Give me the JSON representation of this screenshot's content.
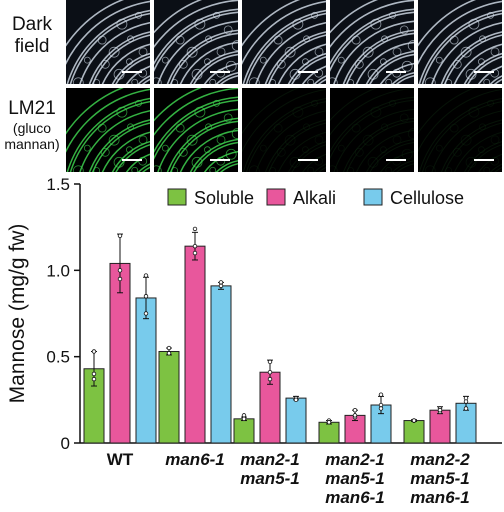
{
  "panels": {
    "row_labels": [
      {
        "lines": [
          "Dark",
          "field"
        ]
      },
      {
        "lines": [
          "LM21",
          "(gluco",
          "mannan)"
        ]
      }
    ]
  },
  "chart_data": {
    "type": "bar",
    "ylabel": "Mannose (mg/g fw)",
    "ylim": [
      0,
      1.5
    ],
    "yticks": [
      "0",
      "0.5",
      "1.0",
      "1.5"
    ],
    "categories": [
      {
        "lines": [
          "WT"
        ]
      },
      {
        "lines": [
          "man6-1"
        ]
      },
      {
        "lines": [
          "man2-1",
          "man5-1"
        ]
      },
      {
        "lines": [
          "man2-1",
          "man5-1",
          "man6-1"
        ]
      },
      {
        "lines": [
          "man2-2",
          "man5-1",
          "man6-1"
        ]
      }
    ],
    "legend_position": "top-right",
    "grid": false,
    "series": [
      {
        "name": "Soluble",
        "color": "#7dc242",
        "values": [
          0.43,
          0.53,
          0.14,
          0.12,
          0.13
        ],
        "errors": [
          0.1,
          0.02,
          0.01,
          0.01,
          0.005
        ],
        "points": [
          [
            0.53,
            0.4,
            0.37
          ],
          [
            0.55,
            0.52,
            0.52
          ],
          [
            0.16,
            0.14,
            0.14
          ],
          [
            0.13,
            0.12,
            0.12
          ],
          [
            0.13,
            0.13,
            0.13
          ]
        ]
      },
      {
        "name": "Alkali",
        "color": "#e8579c",
        "values": [
          1.04,
          1.14,
          0.41,
          0.16,
          0.19
        ],
        "errors": [
          0.17,
          0.08,
          0.07,
          0.03,
          0.02
        ],
        "points": [
          [
            1.2,
            1.0,
            0.95
          ],
          [
            1.24,
            1.14,
            1.1
          ],
          [
            0.47,
            0.41,
            0.37
          ],
          [
            0.19,
            0.15,
            0.16
          ],
          [
            0.2,
            0.18,
            0.19
          ]
        ]
      },
      {
        "name": "Cellulose",
        "color": "#78cbec",
        "values": [
          0.84,
          0.91,
          0.26,
          0.22,
          0.23
        ],
        "errors": [
          0.12,
          0.02,
          0.01,
          0.05,
          0.04
        ],
        "points": [
          [
            0.97,
            0.85,
            0.75
          ],
          [
            0.93,
            0.91,
            0.91
          ],
          [
            0.26,
            0.26,
            0.25
          ],
          [
            0.28,
            0.22,
            0.2
          ],
          [
            0.26,
            0.24,
            0.2
          ]
        ]
      }
    ]
  }
}
